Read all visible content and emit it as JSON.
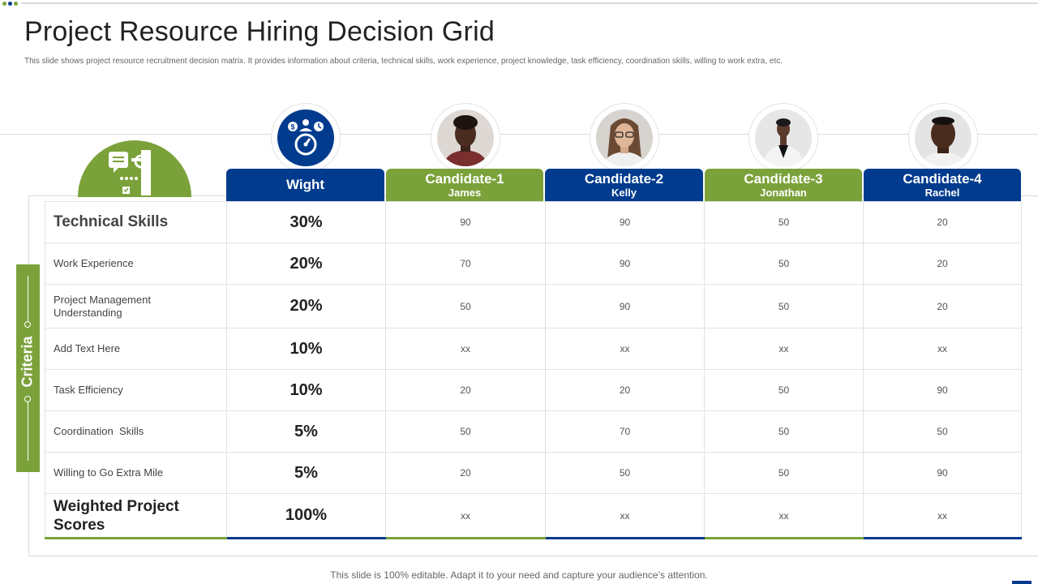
{
  "title": "Project Resource Hiring Decision Grid",
  "subtitle": "This slide shows project resource recruitment decision matrix. It provides information about criteria, technical skills, work experience, project knowledge, task efficiency, coordination skills, willing to work extra, etc.",
  "criteria_label": "Criteria",
  "colors": {
    "blue": "#003b8e",
    "green": "#7ba23a"
  },
  "icons": {
    "criteria_icon": "checklist-hand-icon",
    "weight_icon": "resource-gauge-icon"
  },
  "columns": {
    "weight": {
      "label": "Wight"
    },
    "candidates": [
      {
        "label": "Candidate-1",
        "name": "James",
        "color": "green"
      },
      {
        "label": "Candidate-2",
        "name": "Kelly",
        "color": "blue"
      },
      {
        "label": "Candidate-3",
        "name": "Jonathan",
        "color": "green"
      },
      {
        "label": "Candidate-4",
        "name": "Rachel",
        "color": "blue"
      }
    ]
  },
  "rows": [
    {
      "criterion": "Technical Skills",
      "weight": "30%",
      "scores": [
        "90",
        "90",
        "50",
        "20"
      ]
    },
    {
      "criterion": "Work Experience",
      "weight": "20%",
      "scores": [
        "70",
        "90",
        "50",
        "20"
      ]
    },
    {
      "criterion": "Project Management Understanding",
      "weight": "20%",
      "scores": [
        "50",
        "90",
        "50",
        "20"
      ]
    },
    {
      "criterion": "Add Text Here",
      "weight": "10%",
      "scores": [
        "xx",
        "xx",
        "xx",
        "xx"
      ]
    },
    {
      "criterion": "Task Efficiency",
      "weight": "10%",
      "scores": [
        "20",
        "20",
        "50",
        "90"
      ]
    },
    {
      "criterion": "Coordination  Skills",
      "weight": "5%",
      "scores": [
        "50",
        "70",
        "50",
        "50"
      ]
    },
    {
      "criterion": "Willing to Go Extra Mile",
      "weight": "5%",
      "scores": [
        "20",
        "50",
        "50",
        "90"
      ]
    },
    {
      "criterion": "Weighted Project Scores",
      "weight": "100%",
      "scores": [
        "xx",
        "xx",
        "xx",
        "xx"
      ]
    }
  ],
  "footer": "This slide is 100% editable. Adapt it to your need and capture your audience’s attention."
}
